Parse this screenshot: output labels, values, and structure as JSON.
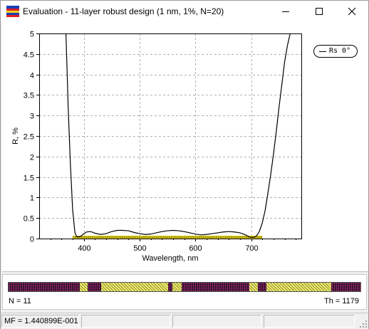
{
  "window": {
    "title": "Evaluation - 11-layer robust design (1 nm, 1%, N=20)",
    "controls": {
      "minimize": "minimize-icon",
      "maximize": "maximize-icon",
      "close": "close-icon"
    }
  },
  "chart_data": {
    "type": "line",
    "xlabel": "Wavelength, nm",
    "ylabel": "R, %",
    "xlim": [
      320,
      790
    ],
    "ylim": [
      0,
      5
    ],
    "x_ticks": [
      400,
      500,
      600,
      700
    ],
    "y_ticks": [
      "0",
      "0.5",
      "1",
      "1.5",
      "2",
      "2.5",
      "3",
      "3.5",
      "4",
      "4.5",
      "5"
    ],
    "grid": true,
    "legend_position": "top-right",
    "series": [
      {
        "name": "Rs 0°",
        "color": "#000000",
        "x": [
          368,
          372,
          376,
          380,
          384,
          387,
          390,
          395,
          400,
          405,
          410,
          415,
          420,
          430,
          440,
          450,
          460,
          470,
          480,
          490,
          500,
          510,
          520,
          530,
          540,
          550,
          560,
          570,
          580,
          590,
          600,
          610,
          620,
          630,
          640,
          650,
          660,
          670,
          680,
          690,
          695,
          700,
          705,
          710,
          715,
          720,
          725,
          730,
          735,
          740,
          745,
          750,
          755,
          760,
          765,
          770
        ],
        "y": [
          5.0,
          3.2,
          1.8,
          0.7,
          0.15,
          0.05,
          0.04,
          0.06,
          0.12,
          0.16,
          0.17,
          0.16,
          0.13,
          0.1,
          0.12,
          0.17,
          0.2,
          0.2,
          0.19,
          0.15,
          0.12,
          0.1,
          0.11,
          0.14,
          0.17,
          0.19,
          0.2,
          0.19,
          0.17,
          0.14,
          0.11,
          0.09,
          0.1,
          0.12,
          0.14,
          0.16,
          0.17,
          0.16,
          0.14,
          0.09,
          0.05,
          0.03,
          0.03,
          0.07,
          0.18,
          0.38,
          0.68,
          1.1,
          1.55,
          2.05,
          2.6,
          3.2,
          3.75,
          4.3,
          4.7,
          5.0
        ]
      }
    ],
    "target": {
      "x_start": 380,
      "x_end": 720,
      "y": 0,
      "color": "#d8c810"
    }
  },
  "layer_panel": {
    "layer_count": "N = 11",
    "thickness": "Th = 1179",
    "segments": [
      {
        "type": "H",
        "fraction": 0.202
      },
      {
        "type": "L",
        "fraction": 0.022
      },
      {
        "type": "H",
        "fraction": 0.04
      },
      {
        "type": "L",
        "fraction": 0.189
      },
      {
        "type": "H",
        "fraction": 0.013
      },
      {
        "type": "L",
        "fraction": 0.025
      },
      {
        "type": "H",
        "fraction": 0.194
      },
      {
        "type": "L",
        "fraction": 0.023
      },
      {
        "type": "H",
        "fraction": 0.024
      },
      {
        "type": "L",
        "fraction": 0.186
      },
      {
        "type": "H",
        "fraction": 0.082
      }
    ]
  },
  "status_bar": {
    "merit_function": "MF = 1.440899E-001",
    "cells": [
      "",
      "",
      "",
      ""
    ]
  },
  "colors": {
    "curve": "#000000",
    "grid": "#b0b0b0",
    "target_band": "#d8c810",
    "layer_dark": "#1a0f1c",
    "layer_light": "#f2ef70"
  }
}
